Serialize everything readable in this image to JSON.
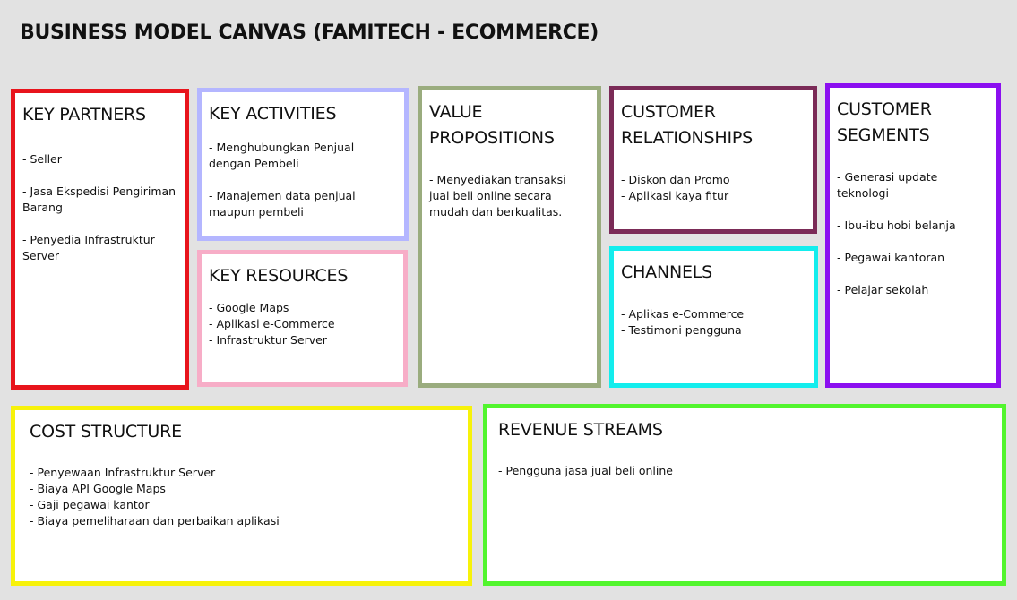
{
  "title": "BUSINESS MODEL CANVAS (FAMITECH - ECOMMERCE)",
  "colors": {
    "background": "#e2e2e2",
    "key_partners": "#e8141c",
    "key_activities": "#b4b6ff",
    "key_resources": "#f7adc7",
    "value_propositions": "#9aac7e",
    "customer_relationships": "#7b2b57",
    "channels": "#13eded",
    "customer_segments": "#8b0ff0",
    "cost_structure": "#f7f20a",
    "revenue_streams": "#52f52e"
  },
  "key_partners": {
    "heading": "KEY PARTNERS",
    "items": [
      "- Seller",
      "- Jasa Ekspedisi Pengiriman Barang",
      "- Penyedia Infrastruktur Server"
    ]
  },
  "key_activities": {
    "heading": "KEY ACTIVITIES",
    "items": [
      "- Menghubungkan Penjual dengan Pembeli",
      "- Manajemen data penjual maupun pembeli"
    ]
  },
  "key_resources": {
    "heading": "KEY RESOURCES",
    "items": [
      "- Google Maps",
      "- Aplikasi e-Commerce",
      "- Infrastruktur Server"
    ]
  },
  "value_propositions": {
    "heading": "VALUE PROPOSITIONS",
    "items": [
      "- Menyediakan transaksi jual beli online secara mudah dan berkualitas."
    ]
  },
  "customer_relationships": {
    "heading": "CUSTOMER RELATIONSHIPS",
    "items": [
      "- Diskon dan Promo",
      "- Aplikasi kaya fitur"
    ]
  },
  "channels": {
    "heading": "CHANNELS",
    "items": [
      "- Aplikas e-Commerce",
      "- Testimoni pengguna"
    ]
  },
  "customer_segments": {
    "heading": "CUSTOMER SEGMENTS",
    "items": [
      "- Generasi update teknologi",
      "- Ibu-ibu hobi belanja",
      "- Pegawai kantoran",
      "- Pelajar sekolah"
    ]
  },
  "cost_structure": {
    "heading": "COST STRUCTURE",
    "items": [
      "- Penyewaan Infrastruktur Server",
      "- Biaya API Google Maps",
      "- Gaji pegawai kantor",
      "- Biaya pemeliharaan dan perbaikan aplikasi"
    ]
  },
  "revenue_streams": {
    "heading": "REVENUE STREAMS",
    "items": [
      "- Pengguna jasa jual beli online"
    ]
  }
}
